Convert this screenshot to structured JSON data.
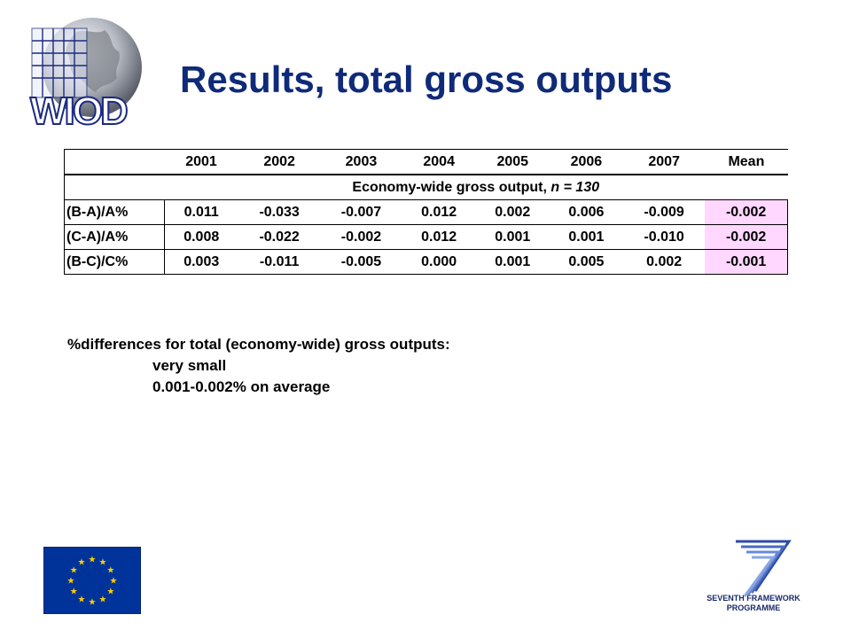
{
  "logo": {
    "text": "WIOD"
  },
  "title": "Results, total gross outputs",
  "table": {
    "columns": [
      "2001",
      "2002",
      "2003",
      "2004",
      "2005",
      "2006",
      "2007",
      "Mean"
    ],
    "subheader_prefix": "Economy-wide gross output, ",
    "subheader_n": "n = 130",
    "rows": [
      {
        "label": "(B-A)/A%",
        "values": [
          "0.011",
          "-0.033",
          "-0.007",
          "0.012",
          "0.002",
          "0.006",
          "-0.009",
          "-0.002"
        ]
      },
      {
        "label": "(C-A)/A%",
        "values": [
          "0.008",
          "-0.022",
          "-0.002",
          "0.012",
          "0.001",
          "0.001",
          "-0.010",
          "-0.002"
        ]
      },
      {
        "label": "(B-C)/C%",
        "values": [
          "0.003",
          "-0.011",
          "-0.005",
          "0.000",
          "0.001",
          "0.005",
          "0.002",
          "-0.001"
        ]
      }
    ],
    "mean_highlight_color": "#ffd7ff"
  },
  "notes": {
    "line1": "%differences for total (economy-wide) gross outputs:",
    "line2": "very small",
    "line3": "0.001-0.002% on average"
  },
  "footer": {
    "eu_flag_icon": "eu-flag-icon",
    "fp7_line1": "SEVENTH FRAMEWORK",
    "fp7_line2": "PROGRAMME"
  },
  "colors": {
    "title": "#0f2a78",
    "eu_blue": "#003399",
    "eu_gold": "#ffcc00"
  }
}
